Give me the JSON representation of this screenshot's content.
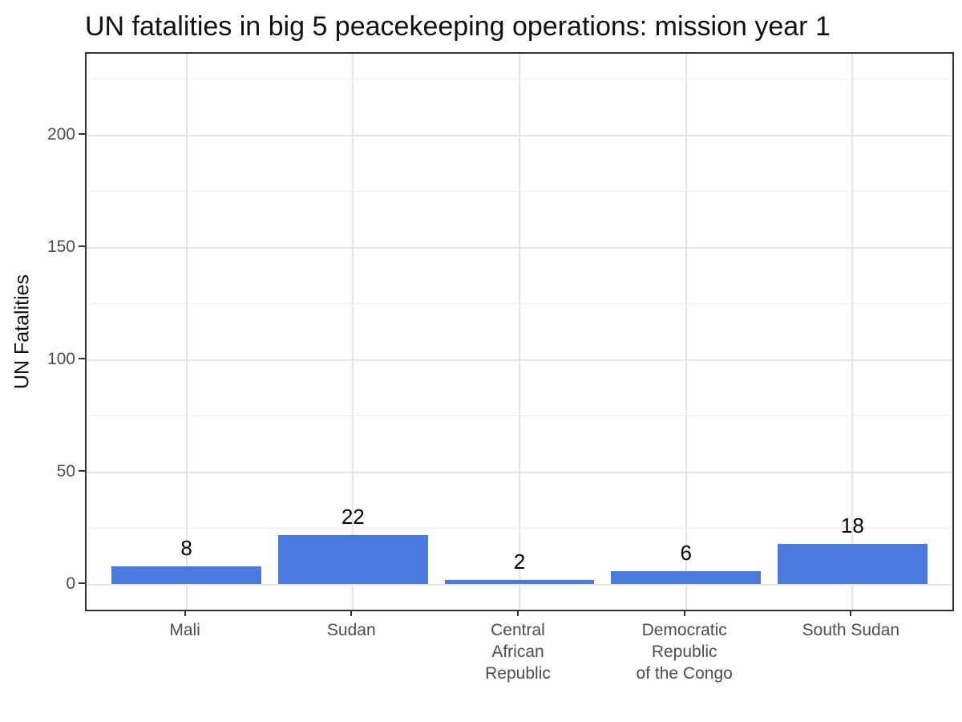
{
  "chart_data": {
    "type": "bar",
    "title": "UN fatalities in big 5 peacekeeping operations: mission year 1",
    "xlabel": "",
    "ylabel": "UN Fatalities",
    "categories": [
      "Mali",
      "Sudan",
      "Central\nAfrican\nRepublic",
      "Democratic\nRepublic\nof the Congo",
      "South Sudan"
    ],
    "values": [
      8,
      22,
      2,
      6,
      18
    ],
    "bar_labels": [
      "8",
      "22",
      "2",
      "6",
      "18"
    ],
    "y_major_ticks": [
      0,
      50,
      100,
      150,
      200
    ],
    "y_minor_ticks": [
      25,
      75,
      125,
      175,
      225
    ],
    "ylim": [
      0,
      225
    ],
    "grid": true,
    "legend": false,
    "bar_color": "#4a7add",
    "panel_border_color": "#333333",
    "grid_major_color": "#e6e6e6",
    "grid_minor_color": "#f0f0f0",
    "tick_label_color": "#4d4d4d",
    "title_color": "#111111"
  }
}
